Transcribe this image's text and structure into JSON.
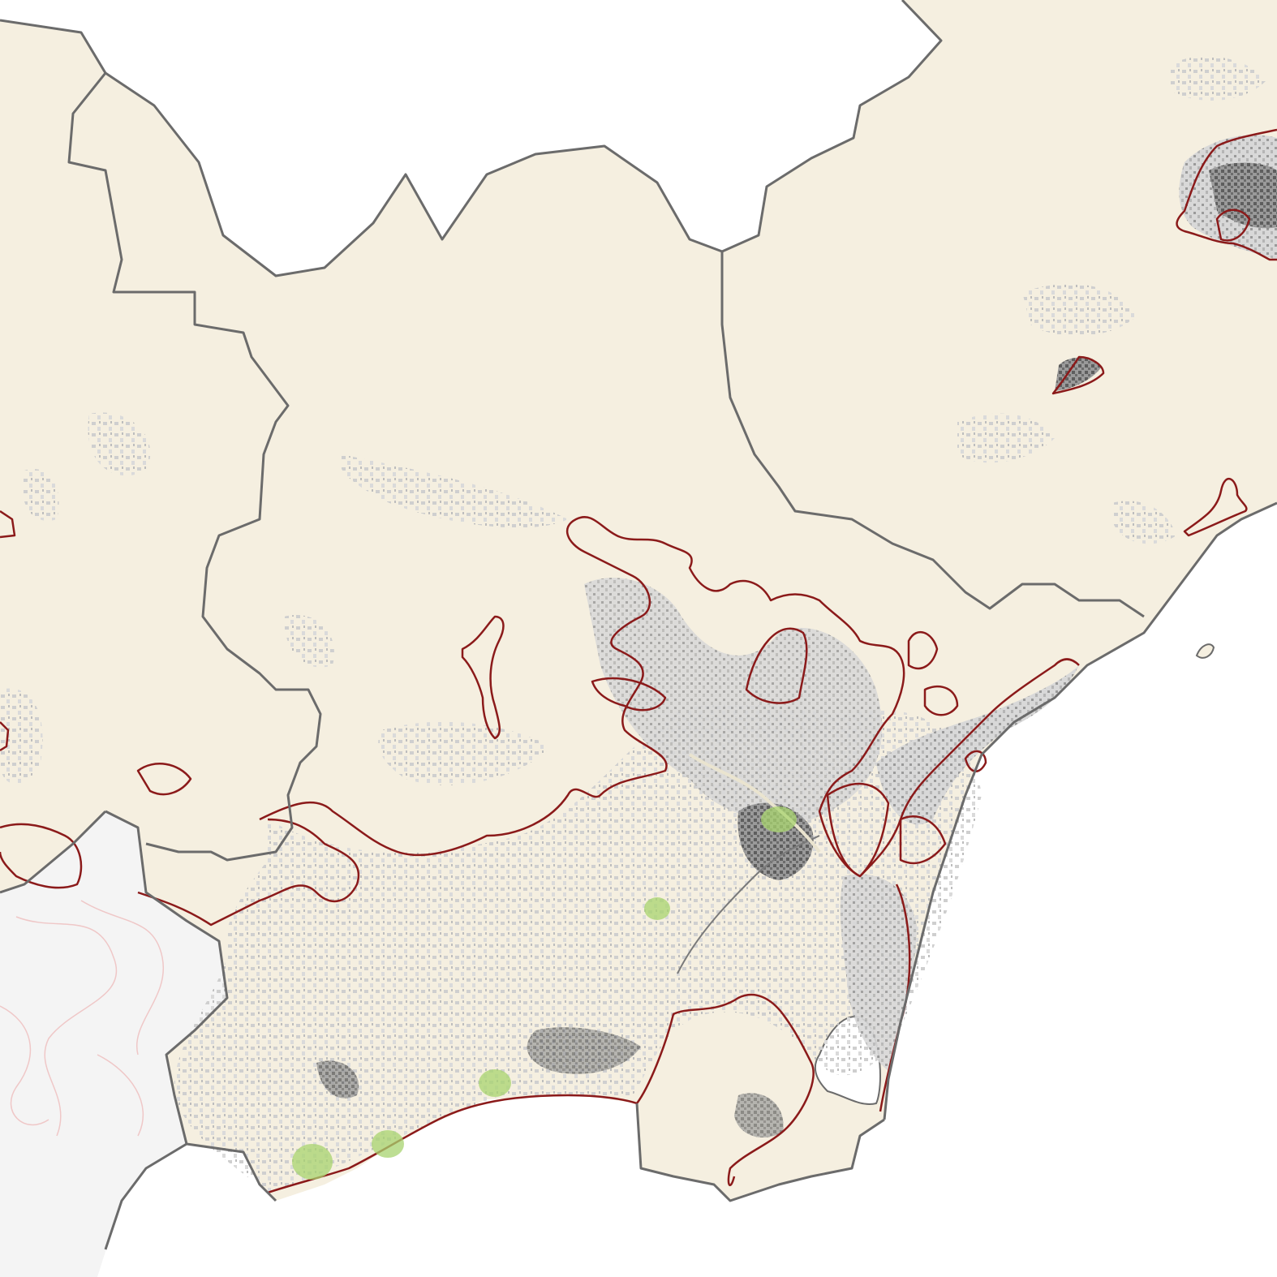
{
  "map": {
    "colors": {
      "sea": "#ffffff",
      "land": "#f5efe0",
      "outside_land": "#f4f4f4",
      "admin_border": "#6b6b6b",
      "urban_outline": "#8b1a1a",
      "urban_light": "#d9d9d9",
      "urban_dark": "#5e5e5e",
      "green_marker": "#a8d46f"
    },
    "layers": [
      "sea",
      "outside-region-land",
      "region-land",
      "built-up-density",
      "urban-area-outlines",
      "admin-borders",
      "green-markers"
    ]
  }
}
